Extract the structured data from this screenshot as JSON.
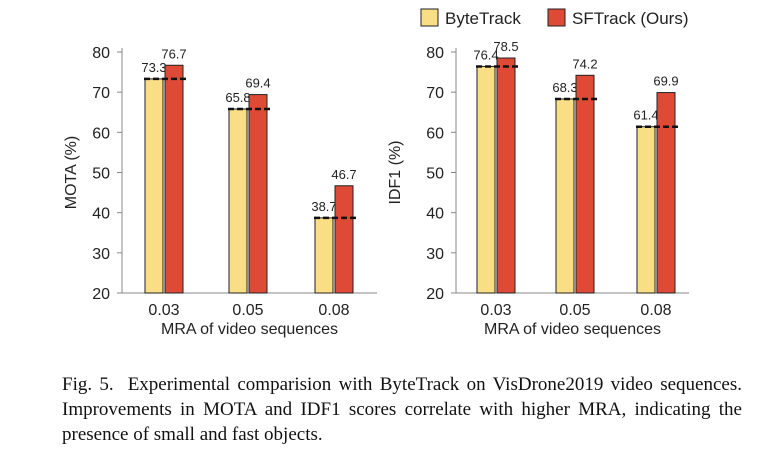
{
  "legend": {
    "entries": [
      {
        "label": "ByteTrack",
        "color": "#f9de85"
      },
      {
        "label": "SFTrack (Ours)",
        "color": "#de4a36"
      }
    ],
    "placement": "top-right"
  },
  "chart_data": [
    {
      "type": "bar",
      "title": "",
      "xlabel": "MRA of video sequences",
      "ylabel": "MOTA  (%)",
      "ylim": [
        20,
        80
      ],
      "yticks": [
        20,
        30,
        40,
        50,
        60,
        70,
        80
      ],
      "categories": [
        "0.03",
        "0.05",
        "0.08"
      ],
      "grid": false,
      "series": [
        {
          "name": "ByteTrack",
          "values": [
            73.3,
            65.8,
            38.7
          ],
          "color": "#f9de85"
        },
        {
          "name": "SFTrack (Ours)",
          "values": [
            76.7,
            69.4,
            46.7
          ],
          "color": "#de4a36"
        }
      ],
      "baseline_dashes": [
        73.3,
        65.8,
        38.7
      ]
    },
    {
      "type": "bar",
      "title": "",
      "xlabel": "MRA of video sequences",
      "ylabel": "IDF1 (%)",
      "ylim": [
        20,
        80
      ],
      "yticks": [
        20,
        30,
        40,
        50,
        60,
        70,
        80
      ],
      "categories": [
        "0.03",
        "0.05",
        "0.08"
      ],
      "grid": false,
      "series": [
        {
          "name": "ByteTrack",
          "values": [
            76.4,
            68.3,
            61.4
          ],
          "color": "#f9de85"
        },
        {
          "name": "SFTrack (Ours)",
          "values": [
            78.5,
            74.2,
            69.9
          ],
          "color": "#de4a36"
        }
      ],
      "baseline_dashes": [
        76.4,
        68.3,
        61.4
      ]
    }
  ],
  "caption": {
    "figure_number": "Fig. 5.",
    "text": "Experimental comparision with ByteTrack on VisDrone2019 video sequences. Improvements in MOTA and IDF1 scores correlate with higher MRA, indicating the presence of small and fast objects."
  }
}
